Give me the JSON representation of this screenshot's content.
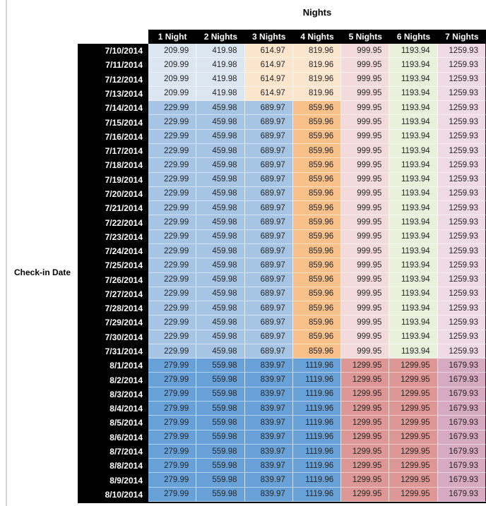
{
  "chart_data": {
    "type": "table",
    "title": "Nights",
    "row_axis_label": "Check-in Date",
    "columns": [
      "1 Night",
      "2 Nights",
      "3 Nights",
      "4 Nights",
      "5 Nights",
      "6 Nights",
      "7 Nights"
    ],
    "colors": {
      "light_blue": "#dce6f1",
      "cream": "#fce5cd",
      "light_pink": "#f3dbdb",
      "light_green": "#e9f0dc",
      "light_rose": "#efdbe6",
      "medium_blue": "#a6c5e5",
      "medium_orange": "#f9c08a",
      "dark_blue": "#68a1d8",
      "salmon": "#dd9795",
      "mauve": "#d7aac4",
      "header_bg": "#000000",
      "header_text": "#ffffff",
      "cell_text": "#262626"
    },
    "tier_colors": {
      "low": [
        "light_blue",
        "light_blue",
        "cream",
        "cream",
        "light_pink",
        "light_green",
        "light_rose"
      ],
      "mid": [
        "medium_blue",
        "medium_blue",
        "medium_blue",
        "medium_orange",
        "light_pink",
        "light_green",
        "light_rose"
      ],
      "high": [
        "dark_blue",
        "dark_blue",
        "dark_blue",
        "dark_blue",
        "salmon",
        "salmon",
        "mauve"
      ]
    },
    "rows": [
      {
        "date": "7/10/2014",
        "tier": "low",
        "values": [
          "209.99",
          "419.98",
          "614.97",
          "819.96",
          "999.95",
          "1193.94",
          "1259.93"
        ]
      },
      {
        "date": "7/11/2014",
        "tier": "low",
        "values": [
          "209.99",
          "419.98",
          "614.97",
          "819.96",
          "999.95",
          "1193.94",
          "1259.93"
        ]
      },
      {
        "date": "7/12/2014",
        "tier": "low",
        "values": [
          "209.99",
          "419.98",
          "614.97",
          "819.96",
          "999.95",
          "1193.94",
          "1259.93"
        ]
      },
      {
        "date": "7/13/2014",
        "tier": "low",
        "values": [
          "209.99",
          "419.98",
          "614.97",
          "819.96",
          "999.95",
          "1193.94",
          "1259.93"
        ]
      },
      {
        "date": "7/14/2014",
        "tier": "mid",
        "values": [
          "229.99",
          "459.98",
          "689.97",
          "859.96",
          "999.95",
          "1193.94",
          "1259.93"
        ]
      },
      {
        "date": "7/15/2014",
        "tier": "mid",
        "values": [
          "229.99",
          "459.98",
          "689.97",
          "859.96",
          "999.95",
          "1193.94",
          "1259.93"
        ]
      },
      {
        "date": "7/16/2014",
        "tier": "mid",
        "values": [
          "229.99",
          "459.98",
          "689.97",
          "859.96",
          "999.95",
          "1193.94",
          "1259.93"
        ]
      },
      {
        "date": "7/17/2014",
        "tier": "mid",
        "values": [
          "229.99",
          "459.98",
          "689.97",
          "859.96",
          "999.95",
          "1193.94",
          "1259.93"
        ]
      },
      {
        "date": "7/18/2014",
        "tier": "mid",
        "values": [
          "229.99",
          "459.98",
          "689.97",
          "859.96",
          "999.95",
          "1193.94",
          "1259.93"
        ]
      },
      {
        "date": "7/19/2014",
        "tier": "mid",
        "values": [
          "229.99",
          "459.98",
          "689.97",
          "859.96",
          "999.95",
          "1193.94",
          "1259.93"
        ]
      },
      {
        "date": "7/20/2014",
        "tier": "mid",
        "values": [
          "229.99",
          "459.98",
          "689.97",
          "859.96",
          "999.95",
          "1193.94",
          "1259.93"
        ]
      },
      {
        "date": "7/21/2014",
        "tier": "mid",
        "values": [
          "229.99",
          "459.98",
          "689.97",
          "859.96",
          "999.95",
          "1193.94",
          "1259.93"
        ]
      },
      {
        "date": "7/22/2014",
        "tier": "mid",
        "values": [
          "229.99",
          "459.98",
          "689.97",
          "859.96",
          "999.95",
          "1193.94",
          "1259.93"
        ]
      },
      {
        "date": "7/23/2014",
        "tier": "mid",
        "values": [
          "229.99",
          "459.98",
          "689.97",
          "859.96",
          "999.95",
          "1193.94",
          "1259.93"
        ]
      },
      {
        "date": "7/24/2014",
        "tier": "mid",
        "values": [
          "229.99",
          "459.98",
          "689.97",
          "859.96",
          "999.95",
          "1193.94",
          "1259.93"
        ]
      },
      {
        "date": "7/25/2014",
        "tier": "mid",
        "values": [
          "229.99",
          "459.98",
          "689.97",
          "859.96",
          "999.95",
          "1193.94",
          "1259.93"
        ]
      },
      {
        "date": "7/26/2014",
        "tier": "mid",
        "values": [
          "229.99",
          "459.98",
          "689.97",
          "859.96",
          "999.95",
          "1193.94",
          "1259.93"
        ]
      },
      {
        "date": "7/27/2014",
        "tier": "mid",
        "values": [
          "229.99",
          "459.98",
          "689.97",
          "859.96",
          "999.95",
          "1193.94",
          "1259.93"
        ]
      },
      {
        "date": "7/28/2014",
        "tier": "mid",
        "values": [
          "229.99",
          "459.98",
          "689.97",
          "859.96",
          "999.95",
          "1193.94",
          "1259.93"
        ]
      },
      {
        "date": "7/29/2014",
        "tier": "mid",
        "values": [
          "229.99",
          "459.98",
          "689.97",
          "859.96",
          "999.95",
          "1193.94",
          "1259.93"
        ]
      },
      {
        "date": "7/30/2014",
        "tier": "mid",
        "values": [
          "229.99",
          "459.98",
          "689.97",
          "859.96",
          "999.95",
          "1193.94",
          "1259.93"
        ]
      },
      {
        "date": "7/31/2014",
        "tier": "mid",
        "values": [
          "229.99",
          "459.98",
          "689.97",
          "859.96",
          "999.95",
          "1193.94",
          "1259.93"
        ]
      },
      {
        "date": "8/1/2014",
        "tier": "high",
        "values": [
          "279.99",
          "559.98",
          "839.97",
          "1119.96",
          "1299.95",
          "1299.95",
          "1679.93"
        ]
      },
      {
        "date": "8/2/2014",
        "tier": "high",
        "values": [
          "279.99",
          "559.98",
          "839.97",
          "1119.96",
          "1299.95",
          "1299.95",
          "1679.93"
        ]
      },
      {
        "date": "8/3/2014",
        "tier": "high",
        "values": [
          "279.99",
          "559.98",
          "839.97",
          "1119.96",
          "1299.95",
          "1299.95",
          "1679.93"
        ]
      },
      {
        "date": "8/4/2014",
        "tier": "high",
        "values": [
          "279.99",
          "559.98",
          "839.97",
          "1119.96",
          "1299.95",
          "1299.95",
          "1679.93"
        ]
      },
      {
        "date": "8/5/2014",
        "tier": "high",
        "values": [
          "279.99",
          "559.98",
          "839.97",
          "1119.96",
          "1299.95",
          "1299.95",
          "1679.93"
        ]
      },
      {
        "date": "8/6/2014",
        "tier": "high",
        "values": [
          "279.99",
          "559.98",
          "839.97",
          "1119.96",
          "1299.95",
          "1299.95",
          "1679.93"
        ]
      },
      {
        "date": "8/7/2014",
        "tier": "high",
        "values": [
          "279.99",
          "559.98",
          "839.97",
          "1119.96",
          "1299.95",
          "1299.95",
          "1679.93"
        ]
      },
      {
        "date": "8/8/2014",
        "tier": "high",
        "values": [
          "279.99",
          "559.98",
          "839.97",
          "1119.96",
          "1299.95",
          "1299.95",
          "1679.93"
        ]
      },
      {
        "date": "8/9/2014",
        "tier": "high",
        "values": [
          "279.99",
          "559.98",
          "839.97",
          "1119.96",
          "1299.95",
          "1299.95",
          "1679.93"
        ]
      },
      {
        "date": "8/10/2014",
        "tier": "high",
        "values": [
          "279.99",
          "559.98",
          "839.97",
          "1119.96",
          "1299.95",
          "1299.95",
          "1679.93"
        ]
      }
    ]
  }
}
